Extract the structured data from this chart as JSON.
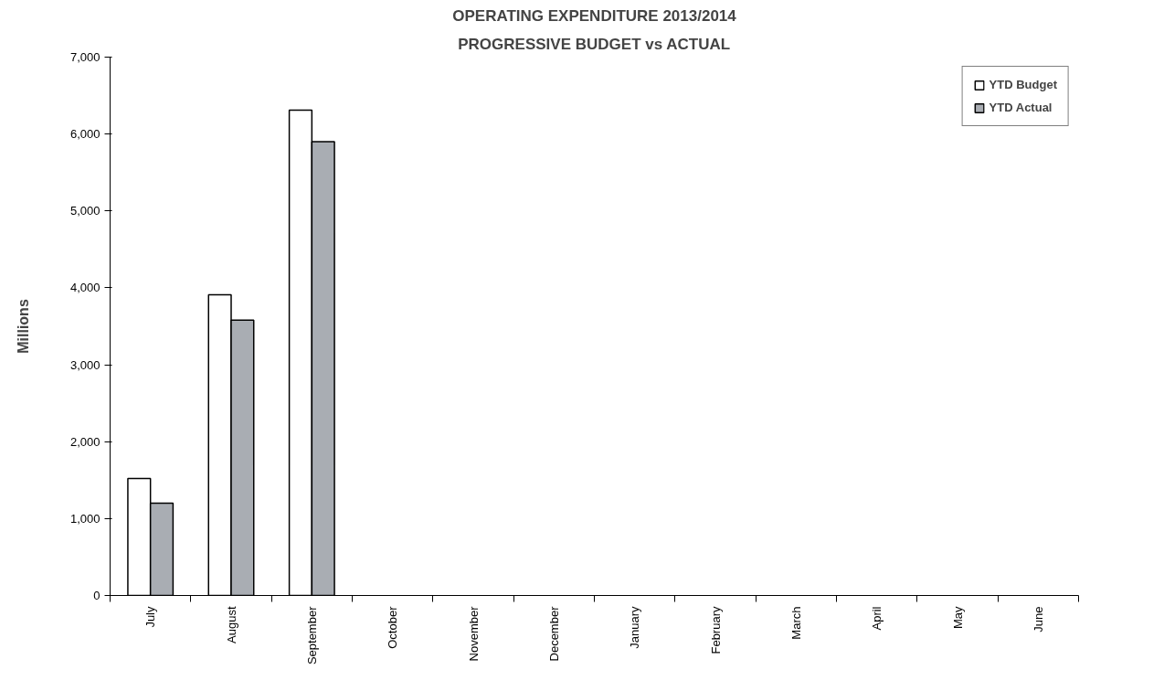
{
  "chart_data": {
    "type": "bar",
    "title": "OPERATING EXPENDITURE 2013/2014",
    "subtitle": "PROGRESSIVE BUDGET vs ACTUAL",
    "ylabel": "Millions",
    "categories": [
      "July",
      "August",
      "September",
      "October",
      "November",
      "December",
      "January",
      "February",
      "March",
      "April",
      "May",
      "June"
    ],
    "series": [
      {
        "name": "YTD Budget",
        "color": "#ffffff",
        "values": [
          1520,
          3910,
          6310,
          null,
          null,
          null,
          null,
          null,
          null,
          null,
          null,
          null
        ]
      },
      {
        "name": "YTD Actual",
        "color": "#a9adb3",
        "values": [
          1200,
          3580,
          5900,
          null,
          null,
          null,
          null,
          null,
          null,
          null,
          null,
          null
        ]
      }
    ],
    "ylim": [
      0,
      7000
    ],
    "yticks": [
      0,
      {
        "value": 1000,
        "label": "1,000"
      },
      {
        "value": 2000,
        "label": "2,000"
      },
      {
        "value": 3000,
        "label": "3,000"
      },
      {
        "value": 4000,
        "label": "4,000"
      },
      {
        "value": 5000,
        "label": "5,000"
      },
      {
        "value": 6000,
        "label": "6,000"
      },
      {
        "value": 7000,
        "label": "7,000"
      }
    ],
    "grid": false,
    "legend": "top right"
  }
}
